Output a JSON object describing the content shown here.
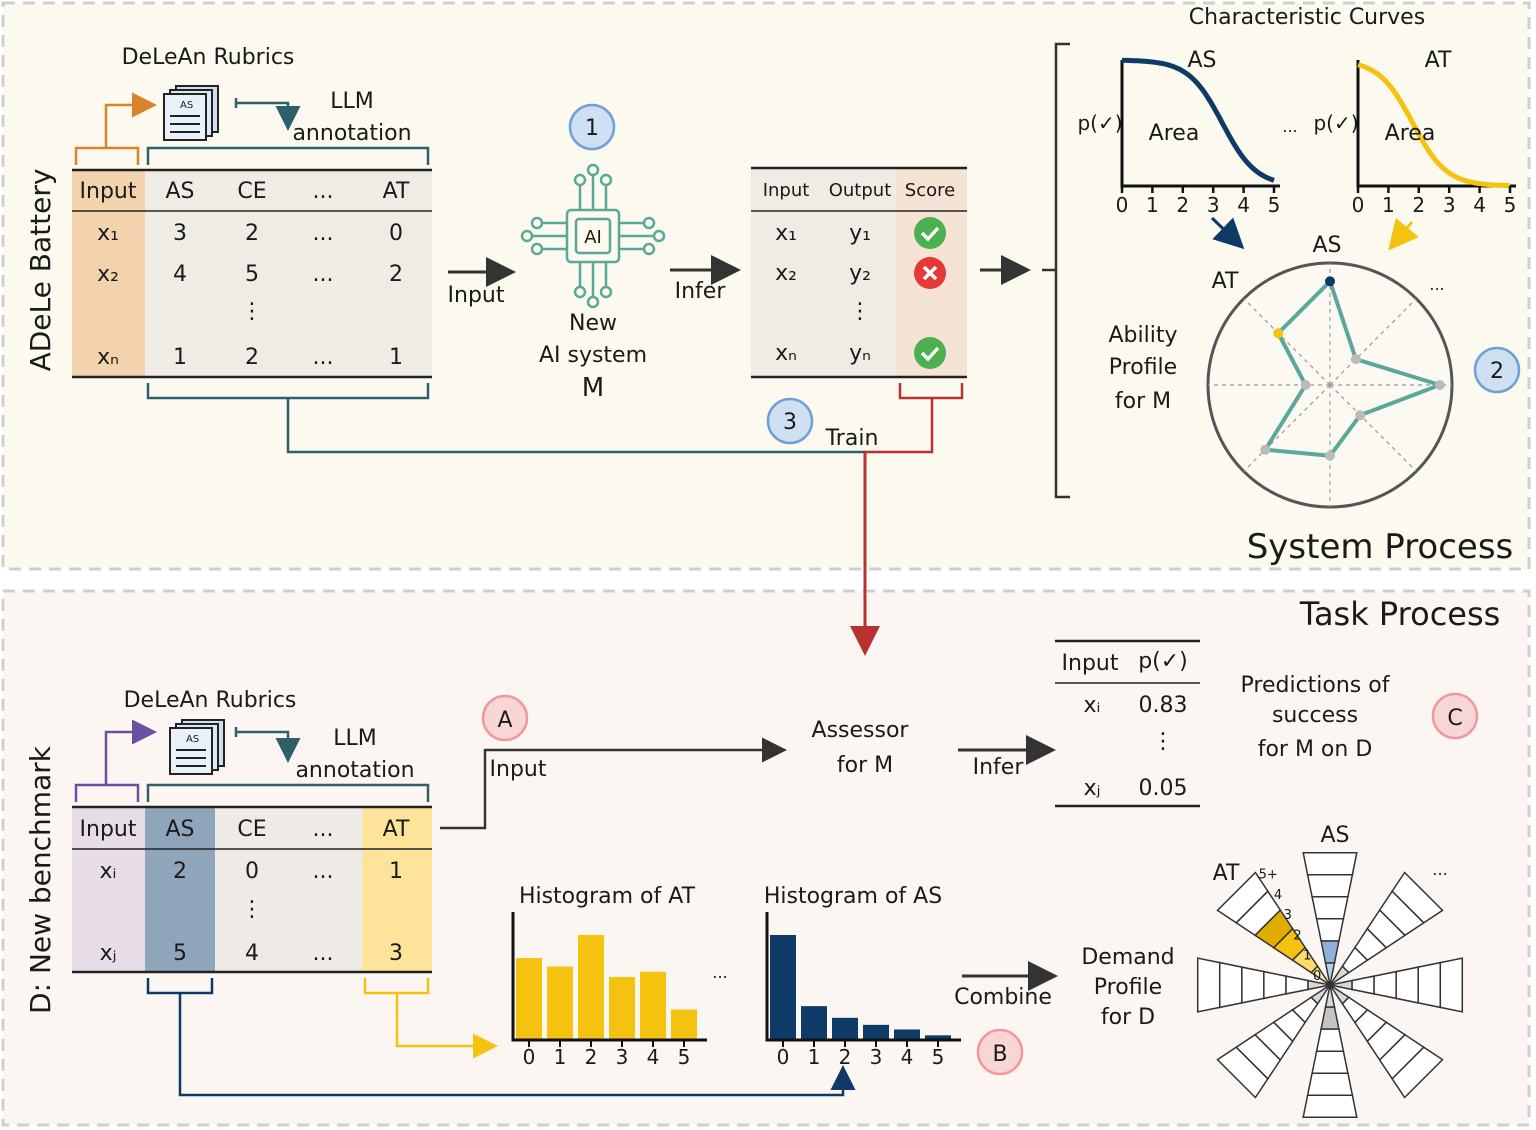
{
  "colors": {
    "orange": "#d9822b",
    "teal": "#5aa89a",
    "navy": "#0d3a66",
    "yellow": "#f5c20f",
    "purple": "#6b4fa0",
    "slate": "#2f5f6a",
    "red": "#b83232",
    "blue_label": "#6f9fd8",
    "pink_label": "#ef9a9a",
    "green_check": "#4caf50",
    "red_cross": "#e53935"
  },
  "system": {
    "side_label": "ADeLe Battery",
    "rubrics_label": "DeLeAn Rubrics",
    "llm_label": "LLM",
    "annotation_label": "annotation",
    "doc_badge": "AS",
    "table": {
      "headers": [
        "Input",
        "AS",
        "CE",
        "...",
        "AT"
      ],
      "rows": [
        [
          "x₁",
          "3",
          "2",
          "...",
          "0"
        ],
        [
          "x₂",
          "4",
          "5",
          "...",
          "2"
        ],
        [
          "",
          "",
          "⋮",
          "",
          ""
        ],
        [
          "xₙ",
          "1",
          "2",
          "...",
          "1"
        ]
      ]
    },
    "input_arrow_label": "Input",
    "step1": "1",
    "chip_label": "AI",
    "ai_system": [
      "New",
      "AI system",
      "M"
    ],
    "infer_arrow_label": "Infer",
    "results": {
      "headers": [
        "Input",
        "Output",
        "Score"
      ],
      "rows": [
        {
          "input": "x₁",
          "output": "y₁",
          "score": "check"
        },
        {
          "input": "x₂",
          "output": "y₂",
          "score": "cross"
        },
        {
          "input": "",
          "output": "⋮",
          "score": ""
        },
        {
          "input": "xₙ",
          "output": "yₙ",
          "score": "check"
        }
      ]
    },
    "step3": "3",
    "train_label": "Train",
    "curves_title": "Characteristic Curves",
    "curves": [
      {
        "name": "AS",
        "ylabel": "p(✓)",
        "area_label": "Area",
        "ticks": [
          "0",
          "1",
          "2",
          "3",
          "4",
          "5"
        ],
        "color": "#0d3a66",
        "midpoint": 3.3
      },
      {
        "name": "AT",
        "ylabel": "p(✓)",
        "area_label": "Area",
        "ticks": [
          "0",
          "1",
          "2",
          "3",
          "4",
          "5"
        ],
        "color": "#f5c20f",
        "midpoint": 1.8
      }
    ],
    "curves_ellipsis": "...",
    "ability_profile": [
      "Ability",
      "Profile",
      "for M"
    ],
    "radar": {
      "labels": {
        "top": "AS",
        "upper_left": "AT",
        "upper_right": "..."
      },
      "values": [
        0.85,
        0.3,
        0.9,
        0.35,
        0.58,
        0.75,
        0.2,
        0.6
      ],
      "max": 1
    },
    "step2": "2",
    "process_label": "System Process"
  },
  "task": {
    "process_label": "Task Process",
    "side_label": "D: New benchmark",
    "rubrics_label": "DeLeAn Rubrics",
    "llm_label": "LLM",
    "annotation_label": "annotation",
    "doc_badge": "AS",
    "table": {
      "headers": [
        "Input",
        "AS",
        "CE",
        "...",
        "AT"
      ],
      "rows": [
        [
          "xᵢ",
          "2",
          "0",
          "...",
          "1"
        ],
        [
          "",
          "",
          "⋮",
          "",
          ""
        ],
        [
          "xⱼ",
          "5",
          "4",
          "...",
          "3"
        ]
      ]
    },
    "stepA": "A",
    "input_arrow_label": "Input",
    "assessor": [
      "Assessor",
      "for M"
    ],
    "infer_arrow_label": "Infer",
    "predictions": {
      "headers": [
        "Input",
        "p(✓)"
      ],
      "rows": [
        [
          "xᵢ",
          "0.83"
        ],
        [
          "",
          "⋮"
        ],
        [
          "xⱼ",
          "0.05"
        ]
      ]
    },
    "predictions_caption": [
      "Predictions of",
      "success",
      "for M on D"
    ],
    "stepC": "C",
    "histograms": [
      {
        "title": "Histogram of AT",
        "color": "#f5c20f",
        "categories": [
          "0",
          "1",
          "2",
          "3",
          "4",
          "5"
        ],
        "values": [
          78,
          70,
          100,
          60,
          65,
          29
        ]
      },
      {
        "title": "Histogram of AS",
        "color": "#0d3a66",
        "categories": [
          "0",
          "1",
          "2",
          "3",
          "4",
          "5"
        ],
        "values": [
          90,
          29,
          19,
          13,
          9,
          4
        ]
      }
    ],
    "histogram_ellipsis": "...",
    "combine_label": "Combine",
    "stepB": "B",
    "demand_profile": [
      "Demand",
      "Profile",
      "for D"
    ],
    "demand_radar": {
      "labels": {
        "top": "AS",
        "upper_left": "AT",
        "upper_right": "..."
      },
      "level_labels": [
        "0",
        "1",
        "2",
        "3",
        "4",
        "5+"
      ],
      "levels": [
        2,
        1,
        1,
        1,
        2,
        1,
        1,
        4
      ]
    }
  }
}
